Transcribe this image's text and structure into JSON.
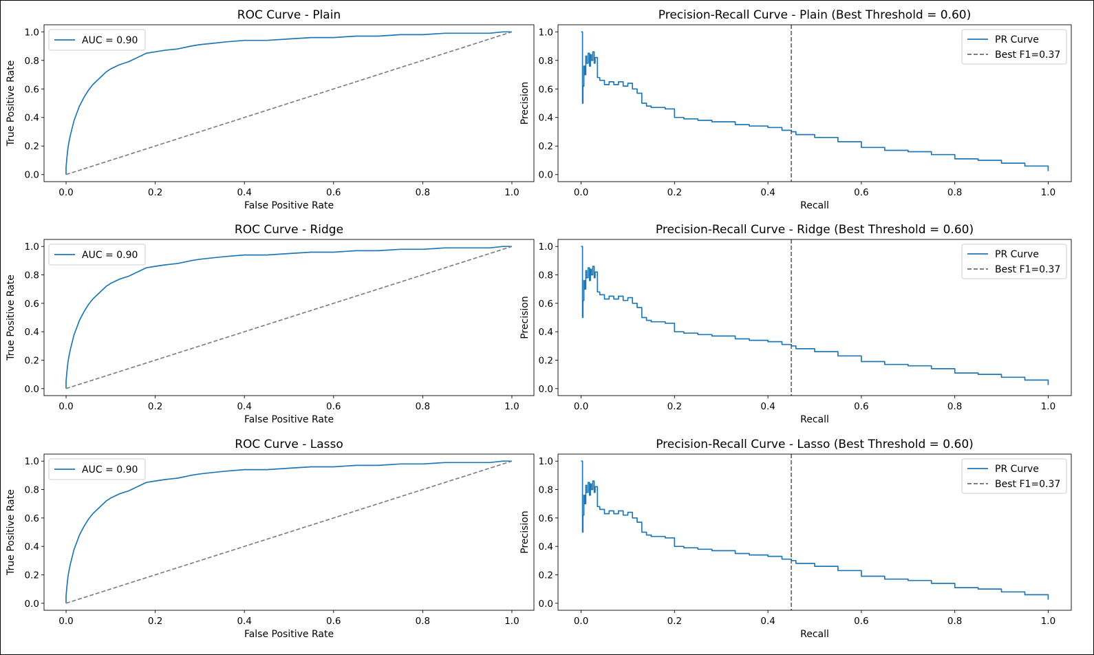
{
  "colors": {
    "curve": "#1f77b4",
    "reference": "#808080",
    "axis": "#000000",
    "legend_border": "#cccccc"
  },
  "chart_data": [
    {
      "type": "line",
      "kind": "roc",
      "title": "ROC Curve - Plain",
      "xlabel": "False Positive Rate",
      "ylabel": "True Positive Rate",
      "xlim": [
        0,
        1
      ],
      "ylim": [
        0,
        1
      ],
      "xticks": [
        "0.0",
        "0.2",
        "0.4",
        "0.6",
        "0.8",
        "1.0"
      ],
      "yticks": [
        "0.0",
        "0.2",
        "0.4",
        "0.6",
        "0.8",
        "1.0"
      ],
      "legend_position": "upper-left",
      "series": [
        {
          "name": "AUC = 0.90",
          "style": "solid",
          "x": [
            0,
            0,
            0.002,
            0.004,
            0.006,
            0.01,
            0.014,
            0.018,
            0.024,
            0.03,
            0.04,
            0.05,
            0.06,
            0.07,
            0.08,
            0.09,
            0.1,
            0.12,
            0.14,
            0.16,
            0.18,
            0.2,
            0.22,
            0.25,
            0.28,
            0.3,
            0.33,
            0.36,
            0.4,
            0.45,
            0.5,
            0.55,
            0.6,
            0.65,
            0.7,
            0.75,
            0.8,
            0.85,
            0.9,
            0.95,
            0.98,
            1.0
          ],
          "y": [
            0,
            0.05,
            0.12,
            0.18,
            0.22,
            0.28,
            0.33,
            0.38,
            0.43,
            0.48,
            0.54,
            0.59,
            0.63,
            0.66,
            0.69,
            0.72,
            0.74,
            0.77,
            0.79,
            0.82,
            0.85,
            0.86,
            0.87,
            0.88,
            0.9,
            0.91,
            0.92,
            0.93,
            0.94,
            0.94,
            0.95,
            0.96,
            0.96,
            0.97,
            0.97,
            0.98,
            0.98,
            0.99,
            0.99,
            0.99,
            1.0,
            1.0
          ]
        },
        {
          "name": "",
          "style": "dashed",
          "x": [
            0,
            1
          ],
          "y": [
            0,
            1
          ]
        }
      ]
    },
    {
      "type": "line",
      "kind": "pr",
      "title": "Precision-Recall Curve - Plain (Best Threshold = 0.60)",
      "xlabel": "Recall",
      "ylabel": "Precision",
      "xlim": [
        0,
        1
      ],
      "ylim": [
        0,
        1
      ],
      "xticks": [
        "0.0",
        "0.2",
        "0.4",
        "0.6",
        "0.8",
        "1.0"
      ],
      "yticks": [
        "0.0",
        "0.2",
        "0.4",
        "0.6",
        "0.8",
        "1.0"
      ],
      "legend_position": "upper-right",
      "series": [
        {
          "name": "PR Curve",
          "style": "solid",
          "x": [
            0,
            0.002,
            0.003,
            0.004,
            0.006,
            0.008,
            0.01,
            0.012,
            0.015,
            0.018,
            0.02,
            0.022,
            0.025,
            0.028,
            0.03,
            0.035,
            0.04,
            0.05,
            0.06,
            0.07,
            0.08,
            0.09,
            0.1,
            0.11,
            0.12,
            0.13,
            0.14,
            0.15,
            0.16,
            0.18,
            0.2,
            0.22,
            0.25,
            0.28,
            0.3,
            0.33,
            0.36,
            0.4,
            0.43,
            0.45,
            0.46,
            0.5,
            0.55,
            0.6,
            0.65,
            0.7,
            0.75,
            0.8,
            0.85,
            0.9,
            0.95,
            1.0
          ],
          "y": [
            1.0,
            1.0,
            0.5,
            0.62,
            0.76,
            0.7,
            0.83,
            0.78,
            0.85,
            0.76,
            0.84,
            0.8,
            0.86,
            0.78,
            0.82,
            0.68,
            0.66,
            0.63,
            0.65,
            0.63,
            0.65,
            0.62,
            0.64,
            0.6,
            0.57,
            0.5,
            0.48,
            0.47,
            0.47,
            0.46,
            0.4,
            0.39,
            0.38,
            0.37,
            0.37,
            0.35,
            0.34,
            0.33,
            0.31,
            0.3,
            0.28,
            0.26,
            0.23,
            0.19,
            0.17,
            0.16,
            0.14,
            0.11,
            0.1,
            0.08,
            0.06,
            0.025
          ]
        },
        {
          "name": "Best F1=0.37",
          "style": "dashed",
          "vline_x": 0.45
        }
      ]
    },
    {
      "type": "line",
      "kind": "roc",
      "title": "ROC Curve - Ridge",
      "xlabel": "False Positive Rate",
      "ylabel": "True Positive Rate",
      "xlim": [
        0,
        1
      ],
      "ylim": [
        0,
        1
      ],
      "xticks": [
        "0.0",
        "0.2",
        "0.4",
        "0.6",
        "0.8",
        "1.0"
      ],
      "yticks": [
        "0.0",
        "0.2",
        "0.4",
        "0.6",
        "0.8",
        "1.0"
      ],
      "legend_position": "upper-left",
      "series": [
        {
          "name": "AUC = 0.90",
          "style": "solid",
          "x": [
            0,
            0,
            0.002,
            0.004,
            0.006,
            0.01,
            0.014,
            0.018,
            0.024,
            0.03,
            0.04,
            0.05,
            0.06,
            0.07,
            0.08,
            0.09,
            0.1,
            0.12,
            0.14,
            0.16,
            0.18,
            0.2,
            0.22,
            0.25,
            0.28,
            0.3,
            0.33,
            0.36,
            0.4,
            0.45,
            0.5,
            0.55,
            0.6,
            0.65,
            0.7,
            0.75,
            0.8,
            0.85,
            0.9,
            0.95,
            0.98,
            1.0
          ],
          "y": [
            0,
            0.05,
            0.12,
            0.18,
            0.22,
            0.28,
            0.33,
            0.38,
            0.43,
            0.48,
            0.54,
            0.59,
            0.63,
            0.66,
            0.69,
            0.72,
            0.74,
            0.77,
            0.79,
            0.82,
            0.85,
            0.86,
            0.87,
            0.88,
            0.9,
            0.91,
            0.92,
            0.93,
            0.94,
            0.94,
            0.95,
            0.96,
            0.96,
            0.97,
            0.97,
            0.98,
            0.98,
            0.99,
            0.99,
            0.99,
            1.0,
            1.0
          ]
        },
        {
          "name": "",
          "style": "dashed",
          "x": [
            0,
            1
          ],
          "y": [
            0,
            1
          ]
        }
      ]
    },
    {
      "type": "line",
      "kind": "pr",
      "title": "Precision-Recall Curve - Ridge (Best Threshold = 0.60)",
      "xlabel": "Recall",
      "ylabel": "Precision",
      "xlim": [
        0,
        1
      ],
      "ylim": [
        0,
        1
      ],
      "xticks": [
        "0.0",
        "0.2",
        "0.4",
        "0.6",
        "0.8",
        "1.0"
      ],
      "yticks": [
        "0.0",
        "0.2",
        "0.4",
        "0.6",
        "0.8",
        "1.0"
      ],
      "legend_position": "upper-right",
      "series": [
        {
          "name": "PR Curve",
          "style": "solid",
          "x": [
            0,
            0.002,
            0.003,
            0.004,
            0.006,
            0.008,
            0.01,
            0.012,
            0.015,
            0.018,
            0.02,
            0.022,
            0.025,
            0.028,
            0.03,
            0.035,
            0.04,
            0.05,
            0.06,
            0.07,
            0.08,
            0.09,
            0.1,
            0.11,
            0.12,
            0.13,
            0.14,
            0.15,
            0.16,
            0.18,
            0.2,
            0.22,
            0.25,
            0.28,
            0.3,
            0.33,
            0.36,
            0.4,
            0.43,
            0.45,
            0.46,
            0.5,
            0.55,
            0.6,
            0.65,
            0.7,
            0.75,
            0.8,
            0.85,
            0.9,
            0.95,
            1.0
          ],
          "y": [
            1.0,
            1.0,
            0.5,
            0.62,
            0.76,
            0.7,
            0.83,
            0.78,
            0.85,
            0.76,
            0.84,
            0.8,
            0.86,
            0.78,
            0.82,
            0.68,
            0.66,
            0.63,
            0.65,
            0.63,
            0.65,
            0.62,
            0.64,
            0.6,
            0.57,
            0.5,
            0.48,
            0.47,
            0.47,
            0.46,
            0.4,
            0.39,
            0.38,
            0.37,
            0.37,
            0.35,
            0.34,
            0.33,
            0.31,
            0.3,
            0.28,
            0.26,
            0.23,
            0.19,
            0.17,
            0.16,
            0.14,
            0.11,
            0.1,
            0.08,
            0.06,
            0.025
          ]
        },
        {
          "name": "Best F1=0.37",
          "style": "dashed",
          "vline_x": 0.45
        }
      ]
    },
    {
      "type": "line",
      "kind": "roc",
      "title": "ROC Curve - Lasso",
      "xlabel": "False Positive Rate",
      "ylabel": "True Positive Rate",
      "xlim": [
        0,
        1
      ],
      "ylim": [
        0,
        1
      ],
      "xticks": [
        "0.0",
        "0.2",
        "0.4",
        "0.6",
        "0.8",
        "1.0"
      ],
      "yticks": [
        "0.0",
        "0.2",
        "0.4",
        "0.6",
        "0.8",
        "1.0"
      ],
      "legend_position": "upper-left",
      "series": [
        {
          "name": "AUC = 0.90",
          "style": "solid",
          "x": [
            0,
            0,
            0.002,
            0.004,
            0.006,
            0.01,
            0.014,
            0.018,
            0.024,
            0.03,
            0.04,
            0.05,
            0.06,
            0.07,
            0.08,
            0.09,
            0.1,
            0.12,
            0.14,
            0.16,
            0.18,
            0.2,
            0.22,
            0.25,
            0.28,
            0.3,
            0.33,
            0.36,
            0.4,
            0.45,
            0.5,
            0.55,
            0.6,
            0.65,
            0.7,
            0.75,
            0.8,
            0.85,
            0.9,
            0.95,
            0.98,
            1.0
          ],
          "y": [
            0,
            0.05,
            0.12,
            0.18,
            0.22,
            0.28,
            0.33,
            0.38,
            0.43,
            0.48,
            0.54,
            0.59,
            0.63,
            0.66,
            0.69,
            0.72,
            0.74,
            0.77,
            0.79,
            0.82,
            0.85,
            0.86,
            0.87,
            0.88,
            0.9,
            0.91,
            0.92,
            0.93,
            0.94,
            0.94,
            0.95,
            0.96,
            0.96,
            0.97,
            0.97,
            0.98,
            0.98,
            0.99,
            0.99,
            0.99,
            1.0,
            1.0
          ]
        },
        {
          "name": "",
          "style": "dashed",
          "x": [
            0,
            1
          ],
          "y": [
            0,
            1
          ]
        }
      ]
    },
    {
      "type": "line",
      "kind": "pr",
      "title": "Precision-Recall Curve - Lasso (Best Threshold = 0.60)",
      "xlabel": "Recall",
      "ylabel": "Precision",
      "xlim": [
        0,
        1
      ],
      "ylim": [
        0,
        1
      ],
      "xticks": [
        "0.0",
        "0.2",
        "0.4",
        "0.6",
        "0.8",
        "1.0"
      ],
      "yticks": [
        "0.0",
        "0.2",
        "0.4",
        "0.6",
        "0.8",
        "1.0"
      ],
      "legend_position": "upper-right",
      "series": [
        {
          "name": "PR Curve",
          "style": "solid",
          "x": [
            0,
            0.002,
            0.003,
            0.004,
            0.006,
            0.008,
            0.01,
            0.012,
            0.015,
            0.018,
            0.02,
            0.022,
            0.025,
            0.028,
            0.03,
            0.035,
            0.04,
            0.05,
            0.06,
            0.07,
            0.08,
            0.09,
            0.1,
            0.11,
            0.12,
            0.13,
            0.14,
            0.15,
            0.16,
            0.18,
            0.2,
            0.22,
            0.25,
            0.28,
            0.3,
            0.33,
            0.36,
            0.4,
            0.43,
            0.45,
            0.46,
            0.5,
            0.55,
            0.6,
            0.65,
            0.7,
            0.75,
            0.8,
            0.85,
            0.9,
            0.95,
            1.0
          ],
          "y": [
            1.0,
            1.0,
            0.5,
            0.62,
            0.76,
            0.7,
            0.83,
            0.78,
            0.85,
            0.76,
            0.84,
            0.8,
            0.86,
            0.78,
            0.82,
            0.68,
            0.66,
            0.63,
            0.65,
            0.63,
            0.65,
            0.62,
            0.64,
            0.6,
            0.57,
            0.5,
            0.48,
            0.47,
            0.47,
            0.46,
            0.4,
            0.39,
            0.38,
            0.37,
            0.37,
            0.35,
            0.34,
            0.33,
            0.31,
            0.3,
            0.28,
            0.26,
            0.23,
            0.19,
            0.17,
            0.16,
            0.14,
            0.11,
            0.1,
            0.08,
            0.06,
            0.025
          ]
        },
        {
          "name": "Best F1=0.37",
          "style": "dashed",
          "vline_x": 0.45
        }
      ]
    }
  ]
}
